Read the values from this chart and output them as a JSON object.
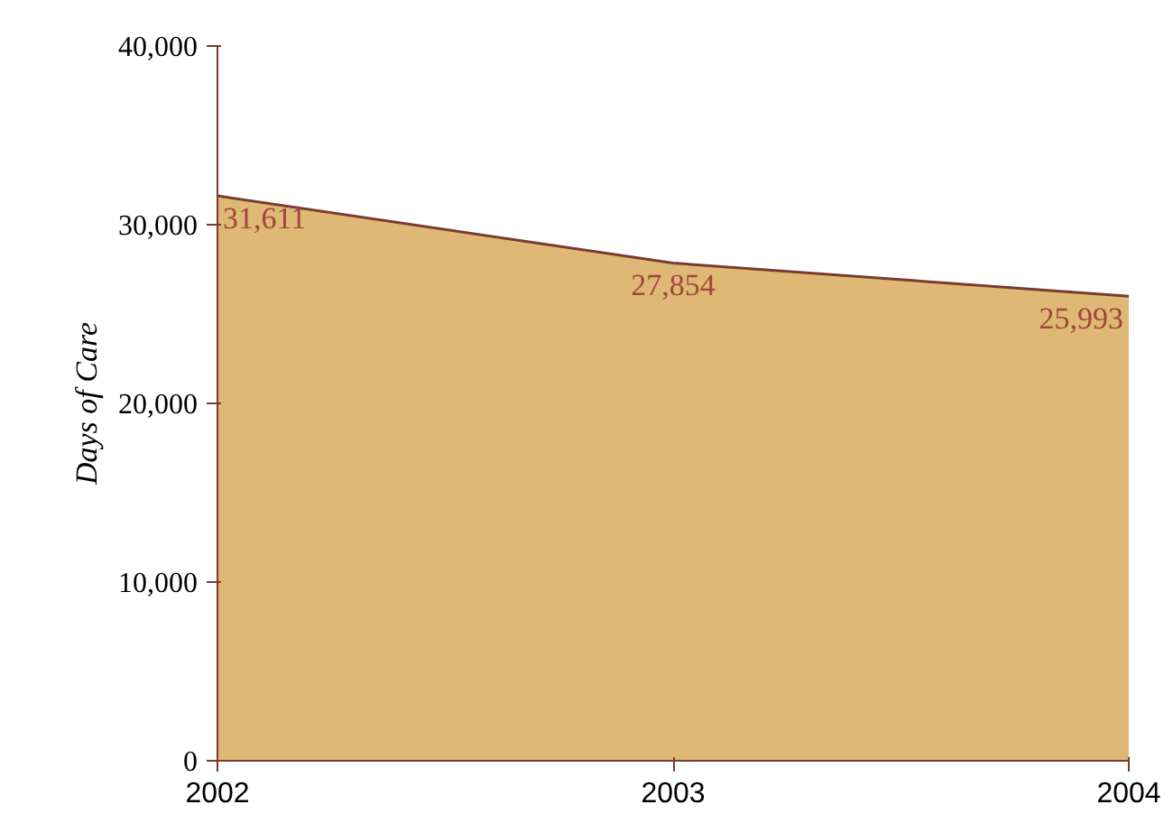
{
  "chart_data": {
    "type": "area",
    "ylabel": "Days of Care",
    "x": [
      2002,
      2003,
      2004
    ],
    "series": [
      {
        "color": "#deb874",
        "values": [
          31611,
          27854,
          25993
        ],
        "value_labels": [
          "31,611",
          "27,854",
          "25,993"
        ]
      }
    ],
    "xlim": [
      2002,
      2004
    ],
    "xticks": [
      2002,
      2003,
      2004
    ],
    "ylim": [
      0,
      40000
    ],
    "yticks": [
      {
        "value": 0,
        "label": "0"
      },
      {
        "value": 10000,
        "label": "10,000"
      },
      {
        "value": 20000,
        "label": "20,000"
      },
      {
        "value": 30000,
        "label": "30,000"
      },
      {
        "value": 40000,
        "label": "40,000"
      }
    ],
    "grid": false
  }
}
